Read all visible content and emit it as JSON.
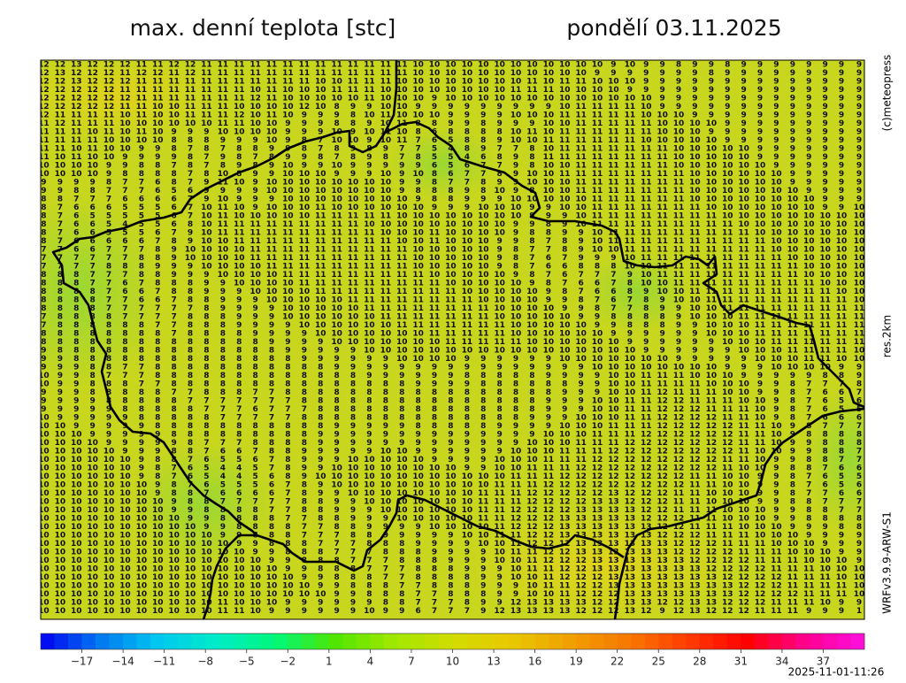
{
  "header": {
    "title": "max. denní teplota [stc]",
    "date": "pondělí 03.11.2025"
  },
  "side_labels": {
    "copyright": "(c)meteopress",
    "resolution": "res.2km",
    "model": "WRFv3.9.9-ARW-S1"
  },
  "timestamp": "2025-11-01-11:26",
  "map": {
    "rows": [
      "12 12 13 12 12 12 11 11 12 12 11 11 11 11 11 11 11 11 11 11 11 11 11 10 10 10 10 10 10 10 10 10 10 10 10 9 10 9 9 8 9 9 8 9 9 9 9 9 9 9 9",
      "12 13 12 12 12 11 12 12 11 12 11 11 11 11 11 11 11 11 11 11 11 11 11 10 10 10 10 10 10 10 10 10 10 10 9 9 9 9 9 9 9 8 9 9 9 9 9 9 9 9 9",
      "12 12 13 12 12 12 11 11 11 11 11 11 11 11 11 11 11 10 10 11 11 11 10 10 10 10 10 10 10 10 11 10 11 11 10 10 10 9 9 9 9 9 9 9 9 9 9 9 9 9 9",
      "12 12 12 12 12 11 11 11 11 11 11 11 11 10 11 10 10 10 11 11 11 10 10 10 10 10 10 10 10 11 11 11 10 10 10 10 9 9 9 9 9 9 9 9 9 9 9 9 9 9 9",
      "12 12 12 12 12 12 11 11 11 11 11 11 11 12 11 10 10 10 10 10 11 10 10 10 9 10 10 10 10 10 10 10 10 10 10 10 10 10 9 9 9 9 9 9 9 9 9 9 9 9 9",
      "12 12 12 12 12 11 11 10 10 11 11 11 10 10 10 10 12 10 8 9 9 10 10 9 9 9 9 9 9 9 9 9 10 11 11 11 11 10 9 9 9 9 9 9 9 9 9 9 9 9 9",
      "12 11 11 11 11 10 11 10 10 11 11 11 12 10 11 10 9 9 9 8 10 11 10 10 10 9 9 9 9 10 10 10 11 11 11 11 11 10 10 10 9 9 9 9 9 9 9 9 9 9 9",
      "11 12 11 11 11 10 10 10 10 10 10 11 11 10 10 9 9 9 8 8 9 10 11 8 8 9 9 8 9 9 9 10 10 11 11 11 11 11 10 10 10 10 9 9 9 9 9 9 9 9 9",
      "11 11 11 10 11 10 11 10 9 9 9 10 10 10 10 9 9 9 10 9 10 11 10 8 6 8 8 8 8 10 11 10 11 11 11 11 11 11 10 10 10 9 9 9 9 9 9 9 9 9 9",
      "11 11 11 11 10 10 10 10 8 8 8 9 9 9 10 9 8 7 10 10 9 10 11 7 6 5 8 8 9 10 10 11 11 11 11 11 11 10 10 10 10 10 9 9 9 9 9 9 9 9 9",
      "11 11 10 11 10 10 9 9 8 7 8 7 8 8 9 9 8 7 8 9 8 9 7 7 5 4 8 9 7 7 8 10 11 11 11 11 11 11 11 10 10 10 10 10 9 9 9 9 9 9 9",
      "11 10 11 10 10 9 9 9 9 8 7 9 8 7 8 9 9 8 7 8 9 8 7 8 5 5 4 6 8 9 8 11 11 11 11 11 11 11 11 10 10 10 10 10 9 9 9 9 9 9 9",
      "10 10 10 10 9 9 8 8 7 8 7 8 9 8 9 10 9 9 10 9 9 9 9 9 6 5 6 7 7 9 8 10 10 11 11 11 11 11 11 10 10 10 10 10 10 9 9 9 9 9 9",
      "10 10 10 10 9 8 8 8 8 7 8 10 8 9 9 10 10 10 9 9 9 10 9 10 8 6 7 7 8 9 10 10 11 11 11 11 11 11 11 11 10 10 10 10 10 10 9 9 9 9 9",
      "9 9 9 9 8 7 7 6 8 7 9 11 10 9 10 10 10 10 10 10 10 10 9 9 8 7 7 8 9 9 10 10 10 11 11 11 11 11 11 11 10 10 10 10 10 10 9 9 9 9 9",
      "9 9 8 8 7 7 7 6 5 6 9 9 9 9 10 10 10 10 10 10 10 10 9 8 8 8 9 8 10 9 8 10 10 11 11 11 11 11 11 11 10 10 10 10 10 10 10 9 9 9 9",
      "8 8 7 7 7 6 6 6 6 7 9 10 9 9 9 10 10 10 10 10 10 10 10 9 8 8 9 9 9 10 10 10 10 10 11 11 11 11 11 11 10 10 10 10 10 10 10 10 9 9 9",
      "8 7 6 6 6 5 5 5 6 7 10 11 10 9 10 10 10 11 10 10 10 10 10 10 9 9 9 10 10 10 9 9 10 10 11 11 11 11 11 11 11 10 10 10 10 10 10 10 9 9 10",
      "8 7 6 5 5 5 5 5 6 7 10 11 10 10 10 10 10 11 11 11 11 11 10 10 10 10 10 10 10 10 9 9 9 10 11 11 11 11 11 11 11 11 10 10 10 10 10 10 10 10 10",
      "8 7 6 6 5 4 5 5 6 8 10 11 11 11 11 11 11 11 11 11 10 10 10 10 10 10 10 10 10 9 9 8 9 10 11 11 11 11 11 11 11 11 11 10 10 10 10 10 10 10 10",
      "8 7 6 6 5 5 5 6 7 9 10 11 11 11 11 11 11 11 11 11 11 10 10 10 11 10 10 10 10 9 8 8 9 9 10 11 11 11 11 11 11 11 11 11 10 10 10 10 10 10 10",
      "8 7 6 6 6 6 6 7 8 9 10 10 11 11 11 11 11 11 11 11 11 11 10 10 11 10 10 10 9 9 8 7 8 9 10 11 11 11 11 11 11 11 11 11 11 10 10 10 10 10 10",
      "7 7 6 6 7 7 7 8 9 10 10 10 10 11 11 11 11 11 11 11 11 11 11 10 10 10 10 10 9 8 7 7 8 9 10 10 11 11 11 11 11 11 11 11 11 10 10 10 10 10 10",
      "7 7 7 7 7 7 8 8 9 10 10 10 10 11 11 11 11 11 11 11 11 11 11 10 10 10 10 10 9 8 7 6 7 9 9 9 10 11 11 11 11 11 11 11 11 11 10 10 10 10 10",
      "7 7 7 7 8 8 8 9 9 9 10 10 10 10 11 11 11 11 11 11 11 11 11 10 10 10 10 10 9 8 7 6 6 8 8 8 10 10 11 11 11 11 11 11 11 11 11 10 10 10 10",
      "8 8 8 7 7 7 8 8 9 9 9 10 10 10 10 11 11 11 11 11 11 11 11 11 10 10 10 10 10 9 8 7 6 7 7 7 9 10 11 11 11 11 11 11 11 11 11 10 10 10 10",
      "8 8 8 7 7 6 7 8 8 8 9 9 10 10 10 10 11 11 11 11 11 11 11 11 11 10 10 10 10 10 9 8 7 6 6 7 8 10 10 11 11 11 11 11 11 11 11 11 10 10 10",
      "8 8 8 8 7 6 6 7 8 8 9 9 9 10 10 10 10 11 11 11 11 11 11 11 11 11 10 10 10 10 10 9 8 7 6 6 8 9 10 10 11 11 11 11 11 11 11 11 11 10 10",
      "8 8 8 8 7 7 6 6 7 8 8 9 9 9 10 10 10 10 10 11 11 11 11 11 11 11 11 10 10 10 10 9 9 8 7 6 7 8 9 10 10 11 11 11 11 11 11 11 11 11 10",
      "8 8 8 8 7 7 7 7 7 7 8 9 9 9 9 10 10 10 10 10 11 11 11 11 11 11 11 11 10 10 10 10 9 9 8 7 7 8 9 9 10 10 11 11 11 11 11 11 11 11 11",
      "7 8 8 8 8 7 7 7 7 8 8 8 9 9 9 10 10 10 10 10 10 11 11 11 11 11 11 11 10 10 10 10 10 9 9 8 8 8 8 9 10 10 10 11 11 11 11 11 11 11 11",
      "7 8 8 8 8 8 8 7 7 8 8 8 9 9 9 9 10 10 10 10 10 10 11 11 11 11 11 11 11 10 10 10 10 10 9 9 8 8 8 9 9 10 10 10 11 11 11 11 11 11 11",
      "8 8 8 8 8 8 8 8 7 8 8 8 8 9 9 9 9 10 10 10 10 10 10 10 11 11 11 11 11 10 10 10 10 10 10 9 9 9 9 9 9 10 10 10 11 11 11 11 11 11 11",
      "8 8 8 8 8 8 8 8 8 8 8 8 8 8 9 9 9 9 10 10 10 10 10 10 10 11 11 11 11 11 10 10 10 10 10 10 9 9 9 9 9 9 10 10 10 11 11 11 11 11 11",
      "9 8 8 8 8 8 8 8 8 8 8 8 8 8 8 9 9 9 9 9 10 10 10 10 10 10 10 10 10 10 10 10 10 10 10 10 10 9 9 9 9 9 9 10 10 10 11 11 11 11 10",
      "9 9 8 8 8 8 8 8 8 8 8 8 8 8 8 8 9 9 9 9 9 9 10 10 10 10 9 9 9 9 9 9 10 10 10 10 10 10 10 9 9 9 9 9 10 10 10 11 11 10 10",
      "9 9 9 8 8 7 7 8 8 8 8 8 8 8 8 8 8 8 9 9 9 9 9 9 9 9 9 9 9 9 9 9 9 9 10 10 10 10 10 10 10 10 9 9 9 10 10 10 10 9 9",
      "10 9 9 8 7 7 7 8 8 8 8 8 8 8 8 8 8 8 8 8 9 9 9 9 9 9 8 8 8 8 8 9 9 9 9 10 10 11 11 11 10 10 10 9 9 9 9 9 8 8 9",
      "10 9 9 8 8 8 7 7 8 8 8 8 8 8 8 8 8 8 8 8 8 8 8 9 9 9 9 8 8 8 8 8 8 9 9 10 10 11 11 11 11 10 10 10 9 9 8 7 7 7 8",
      "9 9 9 8 8 8 8 8 7 7 8 8 8 7 7 8 8 8 8 8 8 8 8 8 8 8 8 8 8 8 8 8 9 9 9 10 10 11 12 11 11 11 10 10 9 9 8 7 6 6 7",
      "9 9 9 9 8 8 8 8 8 7 7 7 7 7 7 7 8 8 8 8 8 8 8 8 8 8 8 8 8 8 8 9 9 9 10 10 11 11 12 12 11 11 11 10 10 9 8 7 6 5 6",
      "9 9 9 9 9 8 8 8 8 8 7 7 7 6 7 7 7 8 8 8 8 8 8 8 8 8 8 8 8 8 8 9 9 9 10 10 11 11 12 12 12 11 11 11 10 9 8 7 6 5 5",
      "10 9 9 9 9 9 8 8 8 8 8 7 7 7 7 7 8 8 8 8 8 8 8 8 8 8 8 8 8 8 9 9 9 10 10 10 11 11 12 12 12 12 11 11 10 9 8 7 6 6 6",
      "10 10 9 9 9 9 9 8 8 8 8 8 8 8 8 8 8 8 9 9 9 9 9 8 8 8 8 8 9 9 9 9 10 10 10 11 11 11 12 12 12 12 12 11 11 10 9 8 7 7 7",
      "10 10 10 9 9 9 9 9 8 8 8 8 8 8 8 8 8 9 9 9 9 9 9 9 9 9 9 9 9 9 9 10 10 10 11 11 11 12 12 12 12 12 12 11 11 10 9 8 8 8 8",
      "10 10 10 10 9 9 9 9 9 8 7 7 7 8 8 8 8 9 9 9 9 9 9 9 9 9 9 9 9 9 10 10 10 11 11 11 12 12 12 12 12 12 12 11 11 10 9 9 8 8 8",
      "10 10 10 10 10 9 9 9 8 8 7 6 6 7 8 8 9 9 9 9 9 10 10 9 9 9 9 9 9 10 10 10 11 11 11 12 12 12 12 12 12 12 12 11 10 10 9 9 8 8 7",
      "10 10 10 10 10 10 9 8 8 7 6 5 5 6 7 8 9 9 9 10 10 10 10 10 9 9 9 9 10 10 10 11 11 11 12 12 12 12 12 12 12 12 11 11 10 9 9 8 8 7 7",
      "10 10 10 10 10 10 9 8 7 6 5 4 4 5 7 8 9 9 10 10 10 10 10 10 10 10 9 9 10 10 11 11 11 12 12 12 12 12 12 12 12 12 11 10 10 9 8 8 7 6 6",
      "10 10 10 10 10 10 9 8 7 6 5 4 4 5 6 8 9 10 10 10 10 10 10 10 10 10 10 10 10 11 11 11 12 12 12 12 12 12 12 12 11 11 10 10 9 9 8 7 6 5 5",
      "10 10 10 10 10 10 10 9 8 7 6 5 5 5 6 7 8 9 10 10 10 10 10 10 10 10 10 10 11 11 11 12 12 12 12 12 12 12 12 12 11 11 10 10 9 9 8 7 6 5 6",
      "10 10 10 10 10 10 10 9 8 8 7 6 6 6 6 7 8 9 9 10 10 10 10 10 10 10 10 11 11 11 12 12 12 12 12 13 12 12 12 11 11 10 10 10 9 9 8 7 7 6 6",
      "10 10 10 10 10 10 10 10 9 8 8 7 7 7 7 7 8 8 9 9 10 10 10 10 10 10 10 11 11 11 12 12 12 12 13 13 12 12 12 11 11 10 10 10 9 9 8 8 7 7 7",
      "10 10 10 10 10 10 10 10 9 9 8 8 8 8 7 7 8 8 9 9 9 10 10 10 10 10 10 11 11 12 12 12 12 13 13 13 13 12 12 11 11 11 10 10 10 9 9 8 8 7 7",
      "10 10 10 10 10 10 10 10 10 9 9 8 8 8 8 7 7 8 8 9 9 9 10 10 10 10 10 11 11 12 12 12 13 13 13 13 13 12 12 12 11 11 10 10 10 9 9 8 8 8 8",
      "10 10 10 10 10 10 10 10 10 10 9 9 8 8 8 8 7 7 8 8 9 9 9 9 10 10 10 10 11 12 12 12 13 13 13 13 13 13 12 12 11 11 11 10 10 10 9 9 9 8 8",
      "10 10 10 10 10 10 10 10 10 10 10 9 9 8 8 8 7 7 7 8 8 9 9 9 9 9 10 10 11 11 12 12 13 13 13 13 13 13 12 12 12 11 11 11 10 10 10 9 9 9 9",
      "10 10 10 10 10 10 10 10 10 10 10 10 9 9 8 8 8 7 7 7 8 8 8 9 9 9 9 10 10 11 12 12 12 13 13 13 13 13 13 12 12 12 11 11 11 10 10 10 9 9 9",
      "10 10 10 10 10 10 10 10 10 10 10 10 10 9 9 8 8 8 7 7 7 8 8 8 9 9 9 9 10 11 11 12 12 13 13 13 13 13 13 12 12 12 12 11 11 11 10 10 10 9 9",
      "10 10 10 10 10 10 10 10 10 10 10 10 10 10 9 9 8 8 8 7 7 7 8 8 8 9 9 9 10 10 11 12 12 12 13 13 13 13 13 13 12 12 12 12 11 11 11 10 10 10 9",
      "10 10 10 10 10 10 10 10 10 10 10 10 10 10 10 9 9 8 8 8 7 7 7 8 8 8 9 9 9 10 11 11 12 12 13 13 13 13 13 13 13 12 12 12 12 11 11 11 10 10 10",
      "10 10 10 10 10 10 10 10 10 10 10 10 10 10 10 10 9 9 8 8 8 7 7 8 8 8 8 9 9 10 10 11 12 12 12 13 13 13 13 13 13 13 12 12 12 12 11 11 11 10 10",
      "10 10 10 10 10 10 10 10 10 10 10 10 10 10 10 10 10 9 9 8 8 8 7 7 8 8 8 9 9 9 10 11 11 12 12 13 13 13 13 13 13 13 13 12 12 12 11 11 11 11 10",
      "10 10 10 10 10 10 10 10 10 10 10 10 10 10 10 10 10 10 9 9 8 8 8 7 7 8 8 8 9 9 10 10 11 12 12 12 13 13 13 13 13 13 13 12 12 12 12 11 11 11 10",
      "10 10 10 10 10 10 10 10 10 10 10 11 10 10 10 9 9 9 9 9 9 8 8 7 7 7 8 9 9 12 13 13 13 13 12 12 13 13 12 12 13 13 12 12 12 11 11 11 10 9 9",
      "10 10 10 10 10 10 10 10 10 10 10 11 11 10 9 9 9 9 9 9 10 9 9 6 7 7 7 9 12 13 13 13 13 12 12 12 13 12 9 12 13 12 12 12 11 11 11 9 9 9 1"
    ]
  },
  "colorbar": {
    "range": [
      -20,
      40
    ],
    "colors": [
      "#0000f0",
      "#0078f0",
      "#00c8f0",
      "#00ecc8",
      "#00f878",
      "#50e600",
      "#a0e800",
      "#d2dc00",
      "#e8c800",
      "#f0a000",
      "#f87800",
      "#ff3c00",
      "#ff0000",
      "#ff0090",
      "#ff10e0"
    ],
    "ticks": [
      {
        "value": -17,
        "label": "−17"
      },
      {
        "value": -14,
        "label": "−14"
      },
      {
        "value": -11,
        "label": "−11"
      },
      {
        "value": -8,
        "label": "−8"
      },
      {
        "value": -5,
        "label": "−5"
      },
      {
        "value": -2,
        "label": "−2"
      },
      1,
      4,
      7,
      10,
      13,
      16,
      19,
      22,
      25,
      28,
      31,
      34,
      37
    ]
  }
}
